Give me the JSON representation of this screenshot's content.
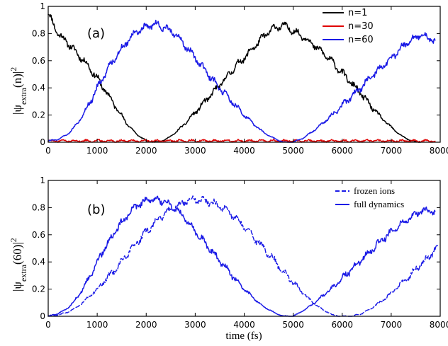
{
  "chart_data": [
    {
      "type": "line",
      "panel_label": "(a)",
      "ylabel": "|ψextra(n)|2",
      "ylabel_main": "|ψ",
      "ylabel_sub": "extra",
      "ylabel_rest": "(n)|",
      "ylabel_sup": "2",
      "xlabel": "",
      "xlim": [
        0,
        8000
      ],
      "ylim": [
        0,
        1
      ],
      "xticks": [
        0,
        1000,
        2000,
        3000,
        4000,
        5000,
        6000,
        7000,
        8000
      ],
      "yticks": [
        0,
        0.2,
        0.4,
        0.6,
        0.8,
        1
      ],
      "ytick_labels": [
        "0",
        "0.2",
        "0.4",
        "0.6",
        "0.8",
        "1"
      ],
      "legend_position": "top-right",
      "series": [
        {
          "name": "n=1",
          "color": "#000000",
          "style": "solid",
          "x": [
            0,
            200,
            400,
            600,
            800,
            1000,
            1200,
            1400,
            1600,
            1800,
            2000,
            2200,
            2400,
            2600,
            2800,
            3000,
            3200,
            3400,
            3600,
            3800,
            4000,
            4200,
            4400,
            4600,
            4800,
            5000,
            5200,
            5400,
            5600,
            5800,
            6000,
            6200,
            6400,
            6600,
            6800,
            7000,
            7200,
            7400,
            7600
          ],
          "y": [
            0.95,
            0.8,
            0.73,
            0.65,
            0.57,
            0.47,
            0.36,
            0.25,
            0.14,
            0.06,
            0.01,
            0.0,
            0.02,
            0.07,
            0.14,
            0.22,
            0.3,
            0.38,
            0.46,
            0.55,
            0.62,
            0.7,
            0.78,
            0.84,
            0.86,
            0.82,
            0.78,
            0.72,
            0.66,
            0.59,
            0.51,
            0.43,
            0.35,
            0.26,
            0.18,
            0.11,
            0.05,
            0.01,
            0.0
          ]
        },
        {
          "name": "n=30",
          "color": "#e00000",
          "style": "solid",
          "x": [
            0,
            1000,
            2000,
            3000,
            4000,
            5000,
            6000,
            7000,
            7900
          ],
          "y": [
            0.01,
            0.01,
            0.01,
            0.01,
            0.01,
            0.01,
            0.01,
            0.01,
            0.01
          ]
        },
        {
          "name": "n=60",
          "color": "#1a1ae6",
          "style": "solid",
          "x": [
            0,
            200,
            400,
            600,
            800,
            1000,
            1200,
            1400,
            1600,
            1800,
            2000,
            2200,
            2400,
            2600,
            2800,
            3000,
            3200,
            3400,
            3600,
            3800,
            4000,
            4200,
            4400,
            4600,
            4800,
            5000,
            5200,
            5400,
            5600,
            5800,
            6000,
            6200,
            6400,
            6600,
            6800,
            7000,
            7200,
            7400,
            7600,
            7800,
            7900
          ],
          "y": [
            0.01,
            0.02,
            0.06,
            0.14,
            0.26,
            0.4,
            0.53,
            0.64,
            0.74,
            0.81,
            0.85,
            0.87,
            0.84,
            0.79,
            0.71,
            0.62,
            0.53,
            0.44,
            0.36,
            0.28,
            0.2,
            0.13,
            0.07,
            0.03,
            0.0,
            0.0,
            0.03,
            0.08,
            0.14,
            0.2,
            0.27,
            0.34,
            0.41,
            0.48,
            0.55,
            0.62,
            0.69,
            0.75,
            0.79,
            0.76,
            0.74
          ]
        }
      ]
    },
    {
      "type": "line",
      "panel_label": "(b)",
      "ylabel": "|ψextra(60)|2",
      "ylabel_main": "|ψ",
      "ylabel_sub": "extra",
      "ylabel_rest": "(60)|",
      "ylabel_sup": "2",
      "xlabel": "time (fs)",
      "xlim": [
        0,
        8000
      ],
      "ylim": [
        0,
        1
      ],
      "xticks": [
        0,
        1000,
        2000,
        3000,
        4000,
        5000,
        6000,
        7000,
        8000
      ],
      "yticks": [
        0,
        0.2,
        0.4,
        0.6,
        0.8,
        1
      ],
      "ytick_labels": [
        "0",
        "0.2",
        "0.4",
        "0.6",
        "0.8",
        "1"
      ],
      "legend_position": "top-right",
      "series": [
        {
          "name": "frozen ions",
          "color": "#1a1ae6",
          "style": "dashed",
          "x": [
            0,
            200,
            400,
            600,
            800,
            1000,
            1200,
            1400,
            1600,
            1800,
            2000,
            2200,
            2400,
            2600,
            2800,
            3000,
            3200,
            3400,
            3600,
            3800,
            4000,
            4200,
            4400,
            4600,
            4800,
            5000,
            5200,
            5400,
            5600,
            5800,
            6000,
            6200,
            6400,
            6600,
            6800,
            7000,
            7200,
            7400,
            7600,
            7800,
            7950
          ],
          "y": [
            0.0,
            0.01,
            0.03,
            0.07,
            0.13,
            0.2,
            0.28,
            0.36,
            0.45,
            0.54,
            0.62,
            0.7,
            0.76,
            0.81,
            0.84,
            0.86,
            0.85,
            0.83,
            0.79,
            0.73,
            0.66,
            0.58,
            0.5,
            0.42,
            0.33,
            0.25,
            0.17,
            0.1,
            0.05,
            0.01,
            0.0,
            0.0,
            0.02,
            0.06,
            0.11,
            0.17,
            0.24,
            0.31,
            0.38,
            0.45,
            0.52
          ]
        },
        {
          "name": "full dynamics",
          "color": "#1a1ae6",
          "style": "solid",
          "x": [
            0,
            200,
            400,
            600,
            800,
            1000,
            1200,
            1400,
            1600,
            1800,
            2000,
            2200,
            2400,
            2600,
            2800,
            3000,
            3200,
            3400,
            3600,
            3800,
            4000,
            4200,
            4400,
            4600,
            4800,
            5000,
            5200,
            5400,
            5600,
            5800,
            6000,
            6200,
            6400,
            6600,
            6800,
            7000,
            7200,
            7400,
            7600,
            7800,
            7900
          ],
          "y": [
            0.0,
            0.02,
            0.06,
            0.14,
            0.26,
            0.4,
            0.53,
            0.64,
            0.74,
            0.81,
            0.85,
            0.86,
            0.84,
            0.79,
            0.72,
            0.63,
            0.54,
            0.45,
            0.37,
            0.28,
            0.2,
            0.13,
            0.07,
            0.03,
            0.0,
            0.0,
            0.04,
            0.09,
            0.15,
            0.21,
            0.28,
            0.35,
            0.42,
            0.49,
            0.56,
            0.62,
            0.68,
            0.73,
            0.77,
            0.78,
            0.76
          ]
        }
      ]
    }
  ]
}
